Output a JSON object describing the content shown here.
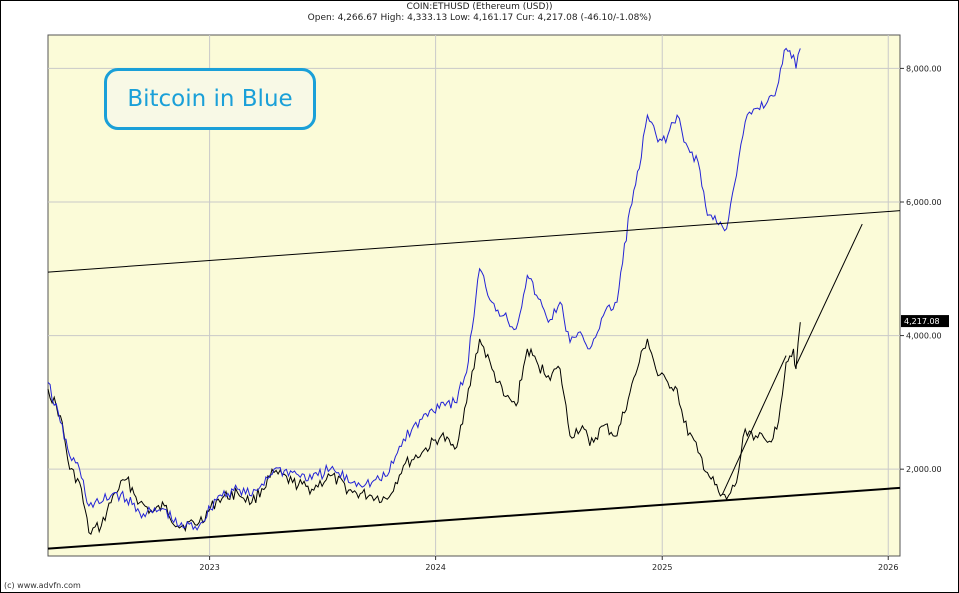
{
  "header": {
    "title": "COIN:ETHUSD (Ethereum (USD))",
    "quote": "Open: 4,266.67 High: 4,333.13 Low: 4,161.17 Cur: 4,217.08 (-46.10/-1.08%)"
  },
  "annotation": "Bitcoin in Blue",
  "footer": "(c) www.advfn.com",
  "colors": {
    "plot_bg": "#fbfbd8",
    "grid": "#c9c9c9",
    "eth": "#000000",
    "btc": "#2424d6",
    "annotation": "#1aa0d8"
  },
  "chart_data": {
    "type": "line",
    "ylim": [
      700,
      8500
    ],
    "y_ticks": [
      {
        "value": 2000,
        "label": "2,000.00"
      },
      {
        "value": 4000,
        "label": "4,000.00"
      },
      {
        "value": 6000,
        "label": "6,000.00"
      },
      {
        "value": 8000,
        "label": "8,000.00"
      }
    ],
    "x_ticks": [
      "2023",
      "2024",
      "2025",
      "2026"
    ],
    "x_tick_dates": [
      "2023-01-01",
      "2024-01-01",
      "2025-01-01",
      "2026-01-01"
    ],
    "xlim": [
      "2022-04-15",
      "2026-01-20"
    ],
    "current_price_label": "4,217.08",
    "current_price": 4217.08,
    "grid": true,
    "series": [
      {
        "id": "eth",
        "color": "#000000",
        "points": [
          [
            "2022-04-15",
            3200
          ],
          [
            "2022-05-05",
            2800
          ],
          [
            "2022-05-20",
            2000
          ],
          [
            "2022-06-05",
            1800
          ],
          [
            "2022-06-20",
            1050
          ],
          [
            "2022-07-10",
            1150
          ],
          [
            "2022-08-01",
            1650
          ],
          [
            "2022-08-20",
            1850
          ],
          [
            "2022-09-10",
            1500
          ],
          [
            "2022-10-01",
            1350
          ],
          [
            "2022-10-20",
            1450
          ],
          [
            "2022-11-10",
            1150
          ],
          [
            "2022-12-15",
            1200
          ],
          [
            "2023-01-15",
            1550
          ],
          [
            "2023-02-15",
            1650
          ],
          [
            "2023-03-10",
            1500
          ],
          [
            "2023-04-15",
            1950
          ],
          [
            "2023-05-15",
            1800
          ],
          [
            "2023-06-15",
            1700
          ],
          [
            "2023-07-15",
            1900
          ],
          [
            "2023-08-20",
            1650
          ],
          [
            "2023-09-20",
            1600
          ],
          [
            "2023-10-15",
            1550
          ],
          [
            "2023-11-10",
            2050
          ],
          [
            "2023-12-10",
            2250
          ],
          [
            "2024-01-10",
            2500
          ],
          [
            "2024-02-01",
            2300
          ],
          [
            "2024-02-20",
            3000
          ],
          [
            "2024-03-12",
            3950
          ],
          [
            "2024-04-01",
            3500
          ],
          [
            "2024-04-20",
            3100
          ],
          [
            "2024-05-10",
            2950
          ],
          [
            "2024-05-28",
            3800
          ],
          [
            "2024-06-15",
            3550
          ],
          [
            "2024-07-01",
            3400
          ],
          [
            "2024-07-20",
            3500
          ],
          [
            "2024-08-05",
            2500
          ],
          [
            "2024-08-25",
            2650
          ],
          [
            "2024-09-06",
            2350
          ],
          [
            "2024-09-28",
            2650
          ],
          [
            "2024-10-20",
            2500
          ],
          [
            "2024-11-10",
            3150
          ],
          [
            "2024-11-25",
            3600
          ],
          [
            "2024-12-08",
            3950
          ],
          [
            "2024-12-25",
            3400
          ],
          [
            "2025-01-10",
            3300
          ],
          [
            "2025-01-25",
            3200
          ],
          [
            "2025-02-05",
            2700
          ],
          [
            "2025-02-28",
            2250
          ],
          [
            "2025-03-15",
            1950
          ],
          [
            "2025-04-05",
            1600
          ],
          [
            "2025-04-15",
            1550
          ],
          [
            "2025-05-01",
            1800
          ],
          [
            "2025-05-15",
            2600
          ],
          [
            "2025-06-01",
            2500
          ],
          [
            "2025-06-20",
            2400
          ],
          [
            "2025-07-05",
            2600
          ],
          [
            "2025-07-20",
            3600
          ],
          [
            "2025-08-01",
            3800
          ],
          [
            "2025-08-05",
            3500
          ],
          [
            "2025-08-12",
            4200
          ]
        ]
      },
      {
        "id": "btc",
        "color": "#2424d6",
        "points": [
          [
            "2022-04-15",
            3300
          ],
          [
            "2022-05-05",
            2700
          ],
          [
            "2022-05-20",
            2200
          ],
          [
            "2022-06-05",
            2000
          ],
          [
            "2022-06-20",
            1450
          ],
          [
            "2022-07-10",
            1500
          ],
          [
            "2022-08-01",
            1650
          ],
          [
            "2022-08-20",
            1550
          ],
          [
            "2022-09-10",
            1350
          ],
          [
            "2022-10-01",
            1350
          ],
          [
            "2022-10-20",
            1400
          ],
          [
            "2022-11-10",
            1150
          ],
          [
            "2022-12-15",
            1150
          ],
          [
            "2023-01-15",
            1600
          ],
          [
            "2023-02-15",
            1700
          ],
          [
            "2023-03-10",
            1600
          ],
          [
            "2023-04-15",
            2000
          ],
          [
            "2023-05-15",
            1950
          ],
          [
            "2023-06-15",
            1850
          ],
          [
            "2023-07-15",
            2000
          ],
          [
            "2023-08-20",
            1800
          ],
          [
            "2023-09-20",
            1800
          ],
          [
            "2023-10-15",
            1900
          ],
          [
            "2023-11-10",
            2450
          ],
          [
            "2023-12-10",
            2750
          ],
          [
            "2024-01-10",
            3000
          ],
          [
            "2024-02-01",
            3000
          ],
          [
            "2024-02-20",
            3450
          ],
          [
            "2024-03-12",
            5000
          ],
          [
            "2024-04-01",
            4500
          ],
          [
            "2024-04-20",
            4300
          ],
          [
            "2024-05-10",
            4100
          ],
          [
            "2024-05-28",
            4900
          ],
          [
            "2024-06-15",
            4550
          ],
          [
            "2024-07-01",
            4200
          ],
          [
            "2024-07-20",
            4500
          ],
          [
            "2024-08-05",
            3900
          ],
          [
            "2024-08-25",
            4000
          ],
          [
            "2024-09-06",
            3800
          ],
          [
            "2024-09-28",
            4300
          ],
          [
            "2024-10-20",
            4500
          ],
          [
            "2024-11-10",
            5900
          ],
          [
            "2024-11-25",
            6500
          ],
          [
            "2024-12-08",
            7300
          ],
          [
            "2024-12-25",
            6900
          ],
          [
            "2025-01-10",
            7000
          ],
          [
            "2025-01-25",
            7300
          ],
          [
            "2025-02-05",
            6900
          ],
          [
            "2025-02-28",
            6600
          ],
          [
            "2025-03-15",
            5800
          ],
          [
            "2025-04-05",
            5700
          ],
          [
            "2025-04-15",
            5600
          ],
          [
            "2025-05-01",
            6400
          ],
          [
            "2025-05-15",
            7200
          ],
          [
            "2025-06-01",
            7400
          ],
          [
            "2025-06-20",
            7500
          ],
          [
            "2025-07-05",
            7700
          ],
          [
            "2025-07-20",
            8300
          ],
          [
            "2025-08-01",
            8200
          ],
          [
            "2025-08-05",
            8000
          ],
          [
            "2025-08-12",
            8300
          ]
        ]
      }
    ],
    "trendlines": [
      {
        "from": [
          "2022-04-15",
          4950
        ],
        "to": [
          "2026-01-20",
          5870
        ],
        "width": 1
      },
      {
        "from": [
          "2022-04-15",
          810
        ],
        "to": [
          "2026-01-20",
          1720
        ],
        "width": 2
      },
      {
        "from": [
          "2025-04-08",
          1620
        ],
        "to": [
          "2025-07-20",
          3700
        ],
        "width": 1
      },
      {
        "from": [
          "2025-08-05",
          3550
        ],
        "to": [
          "2025-11-20",
          5670
        ],
        "width": 1
      }
    ]
  }
}
